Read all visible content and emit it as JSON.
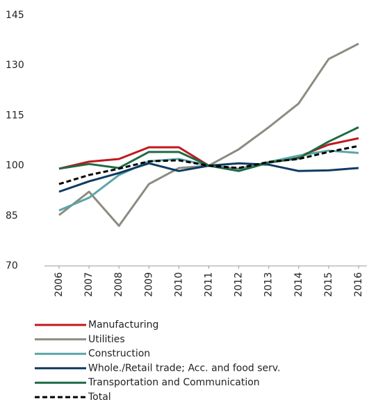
{
  "chart_data": {
    "type": "line",
    "categories": [
      "2006",
      "2007",
      "2008",
      "2009",
      "2010",
      "2011",
      "2012",
      "2013",
      "2014",
      "2015",
      "2016"
    ],
    "series": [
      {
        "name": "Manufacturing",
        "color": "#c0171d",
        "values": [
          99.1,
          101.2,
          102,
          105.5,
          105.5,
          100,
          99,
          101,
          102.7,
          106.3,
          108.2
        ]
      },
      {
        "name": "Utilities",
        "color": "#8b8b80",
        "values": [
          85.2,
          92.2,
          82,
          94.5,
          99.3,
          100,
          104.9,
          111.5,
          118.6,
          131.9,
          136.5
        ]
      },
      {
        "name": "Construction",
        "color": "#5aa5a8",
        "values": [
          86.6,
          90.4,
          97.2,
          101.3,
          102,
          100,
          98.8,
          101.1,
          103,
          104.5,
          103.8
        ]
      },
      {
        "name": "Whole./Retail trade; Acc. and food serv.",
        "color": "#0d3a63",
        "values": [
          92.2,
          95.3,
          97.8,
          100.7,
          98.4,
          100,
          100.7,
          100.3,
          98.4,
          98.6,
          99.3
        ]
      },
      {
        "name": "Transportation and Communication",
        "color": "#1f6a45",
        "values": [
          99.1,
          100.5,
          99.3,
          104.1,
          104.1,
          100,
          98.4,
          100.9,
          102.2,
          107.2,
          111.5
        ]
      },
      {
        "name": "Total",
        "color": "#000000",
        "dashed": true,
        "values": [
          94.5,
          97.2,
          99.1,
          101.3,
          101.6,
          100,
          99.3,
          101.1,
          102,
          104.1,
          105.9
        ]
      }
    ],
    "ylim": [
      70,
      145
    ],
    "yticks": [
      70,
      85,
      100,
      115,
      130,
      145
    ]
  }
}
